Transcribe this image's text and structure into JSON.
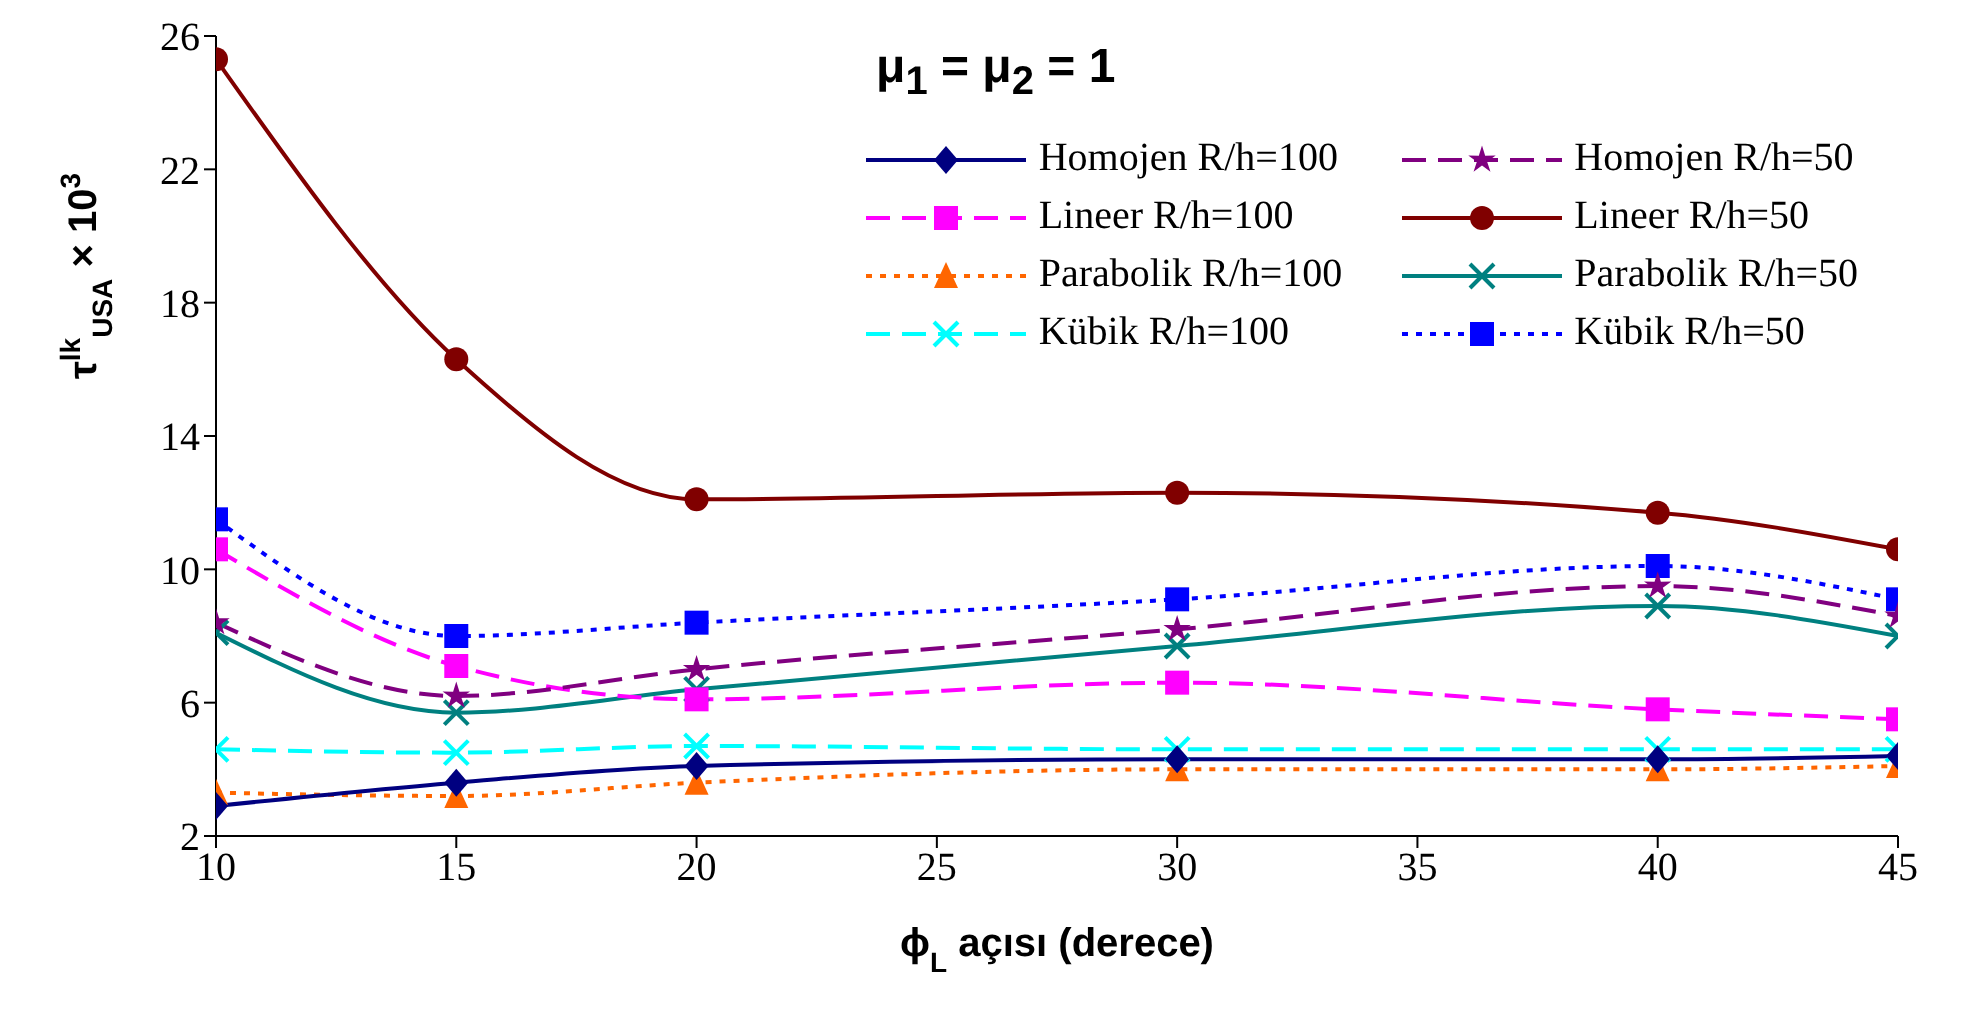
{
  "chart_data": {
    "type": "line",
    "title": "μ$_{1}$ = μ$_{2}$ = 1",
    "xlabel": "ϕ$_{L}$ açısı (derece)",
    "ylabel": "τ$^{lk}$$_{USA}$ × 10$^{3}$",
    "x": [
      10,
      15,
      20,
      30,
      40,
      45
    ],
    "xlim": [
      10,
      45
    ],
    "xticks": [
      10,
      15,
      20,
      25,
      30,
      35,
      40,
      45
    ],
    "ylim": [
      2,
      26
    ],
    "yticks": [
      2,
      6,
      10,
      14,
      18,
      22,
      26
    ],
    "grid": false,
    "legend": "top right",
    "series": [
      {
        "name": "Homojen R/h=100",
        "color": "#000080",
        "marker": "diamond",
        "line_style": "solid",
        "values": [
          2.9,
          3.6,
          4.1,
          4.3,
          4.3,
          4.4
        ]
      },
      {
        "name": "Homojen R/h=50",
        "color": "#800080",
        "marker": "star",
        "line_style": "dashed",
        "values": [
          8.4,
          6.2,
          7.0,
          8.2,
          9.5,
          8.6
        ]
      },
      {
        "name": "Lineer R/h=100",
        "color": "#ff00ff",
        "marker": "square",
        "line_style": "dashed",
        "values": [
          10.6,
          7.1,
          6.1,
          6.6,
          5.8,
          5.5
        ]
      },
      {
        "name": "Lineer R/h=50",
        "color": "#800000",
        "marker": "circle",
        "line_style": "solid",
        "values": [
          25.3,
          16.3,
          12.1,
          12.3,
          11.7,
          10.6
        ]
      },
      {
        "name": "Parabolik R/h=100",
        "color": "#ff6600",
        "marker": "triangle",
        "line_style": "dotted",
        "values": [
          3.3,
          3.2,
          3.6,
          4.0,
          4.0,
          4.1
        ]
      },
      {
        "name": "Parabolik R/h=50",
        "color": "#008080",
        "marker": "cross",
        "line_style": "solid",
        "values": [
          8.1,
          5.7,
          6.4,
          7.7,
          8.9,
          8.0
        ]
      },
      {
        "name": "Kübik R/h=100",
        "color": "#00ffff",
        "marker": "cross",
        "line_style": "dashed",
        "values": [
          4.6,
          4.5,
          4.7,
          4.6,
          4.6,
          4.6
        ]
      },
      {
        "name": "Kübik R/h=50",
        "color": "#0000ff",
        "marker": "square",
        "line_style": "dotted",
        "values": [
          11.5,
          8.0,
          8.4,
          9.1,
          10.1,
          9.1
        ]
      }
    ]
  }
}
